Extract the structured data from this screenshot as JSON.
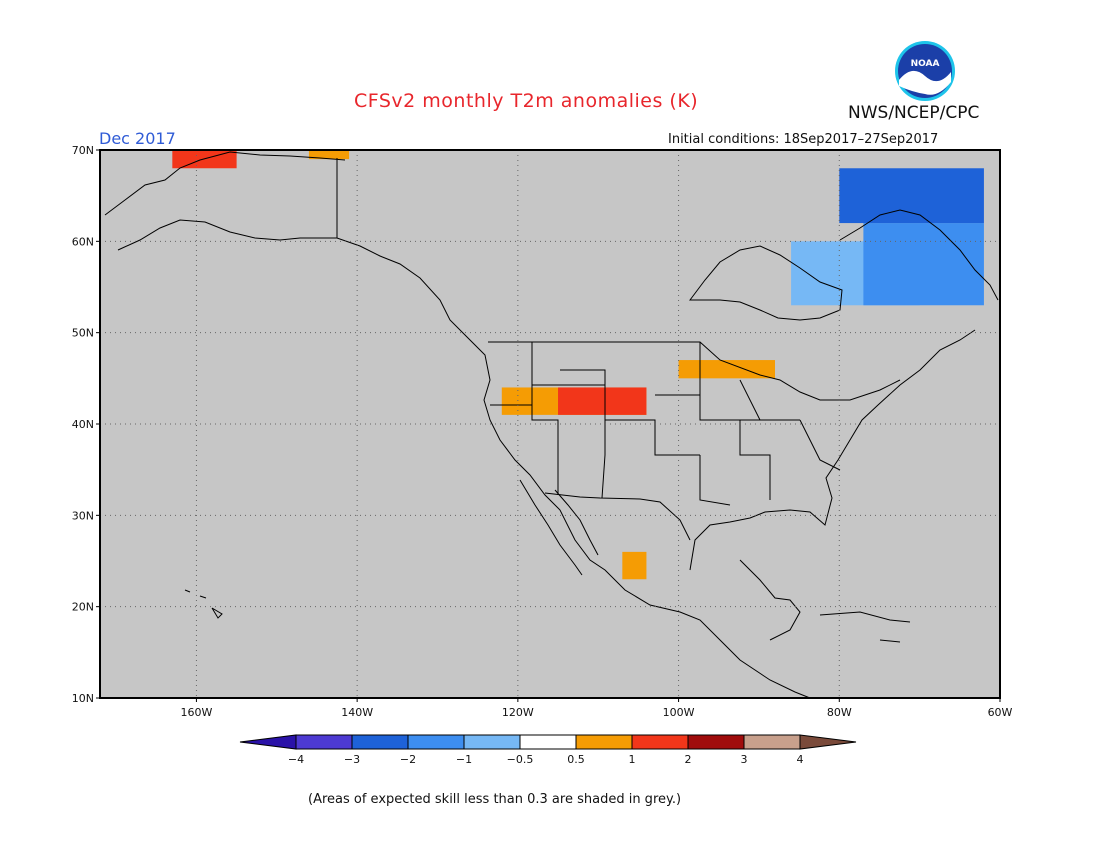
{
  "header": {
    "title": "CFSv2 monthly T2m anomalies (K)",
    "month": "Dec 2017",
    "initial_conditions": "Initial conditions: 18Sep2017–27Sep2017",
    "agency": "NWS/NCEP/CPC",
    "logo_text": "NOAA"
  },
  "map": {
    "lon_range": [
      -172,
      -60
    ],
    "lat_range": [
      10,
      70
    ],
    "lat_labels": [
      "10N",
      "20N",
      "30N",
      "40N",
      "50N",
      "60N",
      "70N"
    ],
    "lon_labels": [
      "160W",
      "140W",
      "120W",
      "100W",
      "80W",
      "60W"
    ],
    "colors": {
      "grey_low_skill": "#c6c6c6",
      "land_lines": "#000000",
      "grid": "#666666"
    },
    "anomaly_regions": [
      {
        "name": "alaska-north-warm",
        "category": "1 to 2",
        "color": "#f2361a",
        "lon": [
          -163,
          -155
        ],
        "lat": [
          68,
          70
        ]
      },
      {
        "name": "arctic-coast-warm",
        "category": "0.5 to 1",
        "color": "#f59c04",
        "lon": [
          -146,
          -141
        ],
        "lat": [
          69,
          70
        ]
      },
      {
        "name": "great-basin-warm",
        "category": "0.5 to 1",
        "color": "#f59c04",
        "lon": [
          -122,
          -104
        ],
        "lat": [
          41,
          44
        ]
      },
      {
        "name": "rockies-warm-core",
        "category": "1 to 2",
        "color": "#f2361a",
        "lon": [
          -115,
          -104
        ],
        "lat": [
          41,
          44
        ]
      },
      {
        "name": "upper-midwest-warm",
        "category": "0.5 to 1",
        "color": "#f59c04",
        "lon": [
          -100,
          -88
        ],
        "lat": [
          45,
          47
        ]
      },
      {
        "name": "mexico-warm",
        "category": "0.5 to 1",
        "color": "#f59c04",
        "lon": [
          -107,
          -104
        ],
        "lat": [
          23,
          26
        ]
      },
      {
        "name": "hudson-bay-cool",
        "category": "-1 to -0.5",
        "color": "#76b8f5",
        "lon": [
          -86,
          -70
        ],
        "lat": [
          53,
          60
        ]
      },
      {
        "name": "labrador-cool",
        "category": "-2 to -1",
        "color": "#3d8ef0",
        "lon": [
          -77,
          -62
        ],
        "lat": [
          53,
          62
        ]
      },
      {
        "name": "baffin-cool",
        "category": "-3 to -2",
        "color": "#1e62d8",
        "lon": [
          -80,
          -62
        ],
        "lat": [
          62,
          68
        ]
      }
    ]
  },
  "colorbar": {
    "labels": [
      "−4",
      "−3",
      "−2",
      "−1",
      "−0.5",
      "0.5",
      "1",
      "2",
      "3",
      "4"
    ],
    "colors": [
      "#2a12a8",
      "#4d3ad2",
      "#1e62d8",
      "#3d8ef0",
      "#76b8f5",
      "#ffffff",
      "#f59c04",
      "#f2361a",
      "#a00c0c",
      "#c8a08c",
      "#7a4a3a"
    ]
  },
  "footnote": "(Areas of expected skill less than 0.3 are shaded in grey.)"
}
